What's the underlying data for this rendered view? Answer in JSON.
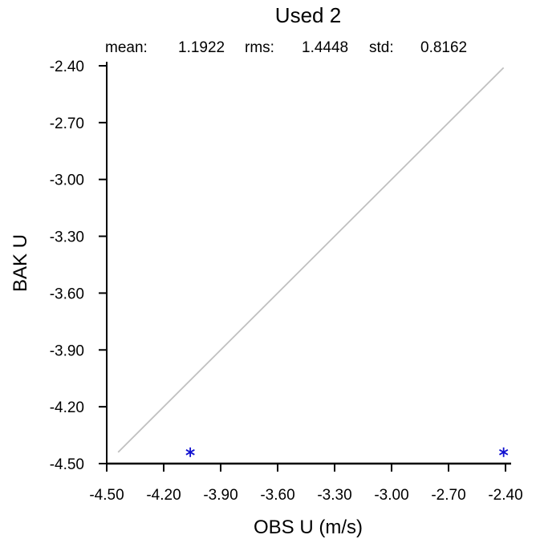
{
  "chart_data": {
    "type": "scatter",
    "title": "Used  2",
    "stats": {
      "mean_label": "mean:",
      "mean_value": "1.1922",
      "rms_label": "rms:",
      "rms_value": "1.4448",
      "std_label": "std:",
      "std_value": "0.8162"
    },
    "xlabel": "OBS U  (m/s)",
    "ylabel": "BAK U",
    "xlim": [
      -4.5,
      -2.4
    ],
    "ylim": [
      -4.5,
      -2.4
    ],
    "xticks": [
      "-4.50",
      "-4.20",
      "-3.90",
      "-3.60",
      "-3.30",
      "-3.00",
      "-2.70",
      "-2.40"
    ],
    "yticks": [
      "-2.40",
      "-2.70",
      "-3.00",
      "-3.30",
      "-3.60",
      "-3.90",
      "-4.20",
      "-4.50"
    ],
    "points": [
      {
        "x": -4.06,
        "y": -4.44
      },
      {
        "x": -2.41,
        "y": -4.44
      }
    ],
    "marker": "*",
    "marker_color": "#1010d0",
    "reference_line": {
      "from": [
        -4.44,
        -4.44
      ],
      "to": [
        -2.41,
        -2.41
      ],
      "color": "#c0c0c0"
    },
    "grid": false
  }
}
